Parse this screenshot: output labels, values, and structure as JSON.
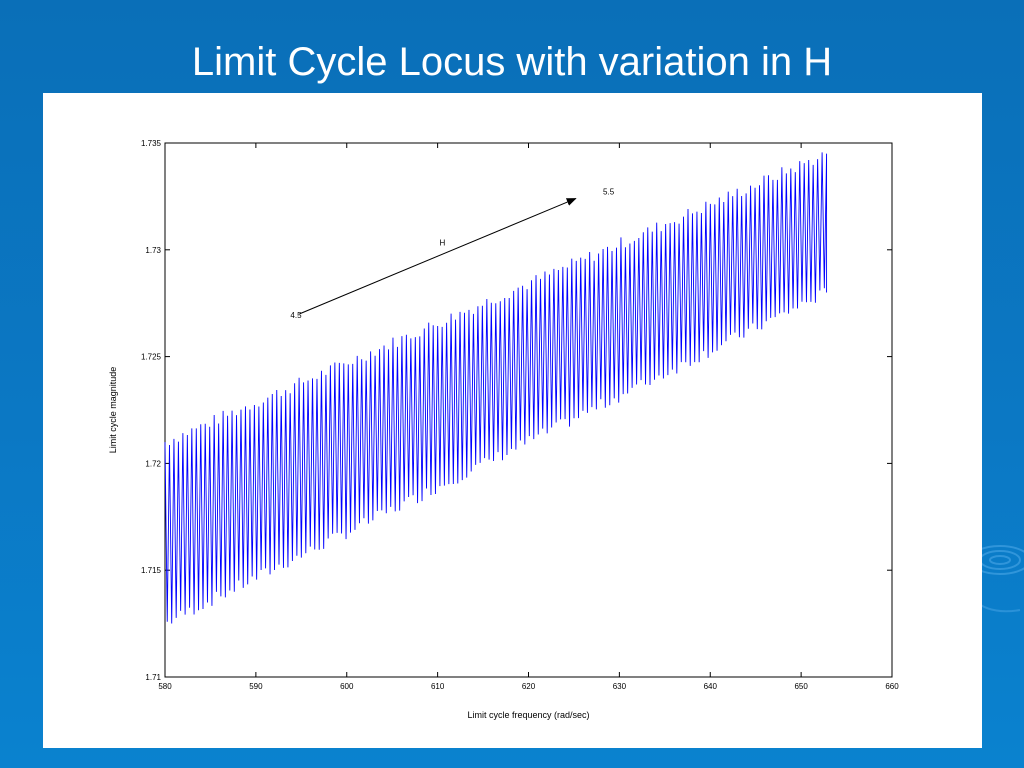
{
  "slide": {
    "title": "Limit Cycle Locus with variation in H",
    "background_color": "#0b75c0"
  },
  "chart_data": {
    "type": "line",
    "title": "",
    "xlabel": "Limit cycle frequency (rad/sec)",
    "ylabel": "Limit cycle magnitude",
    "xlim": [
      580,
      660
    ],
    "ylim": [
      1.71,
      1.735
    ],
    "x_ticks": [
      580,
      590,
      600,
      610,
      620,
      630,
      640,
      650,
      660
    ],
    "y_ticks": [
      1.71,
      1.715,
      1.72,
      1.725,
      1.73,
      1.735
    ],
    "x_tick_labels": [
      "580",
      "590",
      "600",
      "610",
      "620",
      "630",
      "640",
      "650",
      "660"
    ],
    "y_tick_labels": [
      "1.71",
      "1.715",
      "1.72",
      "1.725",
      "1.73",
      "1.735"
    ],
    "grid": false,
    "series": [
      {
        "color": "#0000ff",
        "x_range": [
          580,
          652.8
        ],
        "oscillation_cycles": 148,
        "upper_envelope": {
          "x": [
            580,
            652.8
          ],
          "y": [
            1.721,
            1.7345
          ]
        },
        "lower_envelope": {
          "x": [
            580,
            652.8
          ],
          "y": [
            1.7125,
            1.728
          ]
        }
      }
    ],
    "annotations": [
      {
        "text": "4.5",
        "x": 593.8,
        "y": 1.7268
      },
      {
        "text": "H",
        "x": 610.2,
        "y": 1.7302
      },
      {
        "text": "5.5",
        "x": 628.2,
        "y": 1.7326
      }
    ],
    "arrow": {
      "from": [
        594.8,
        1.727
      ],
      "to": [
        625.2,
        1.7324
      ]
    }
  }
}
